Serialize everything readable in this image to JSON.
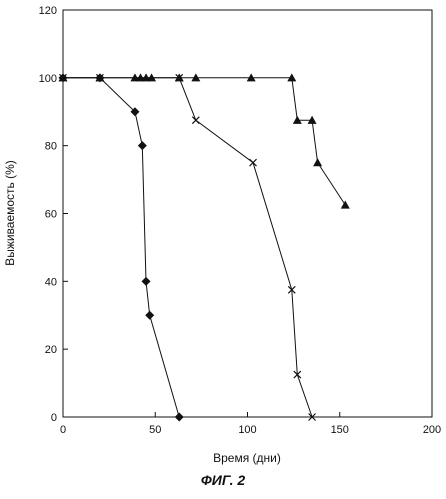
{
  "figure_caption": "ФИГ. 2",
  "chart_data": {
    "type": "line",
    "title": "",
    "xlabel": "Время (дни)",
    "ylabel": "Выживаемость (%)",
    "xlim": [
      0,
      200
    ],
    "ylim": [
      0,
      120
    ],
    "xticks": [
      0,
      50,
      100,
      150,
      200
    ],
    "yticks": [
      0,
      20,
      40,
      60,
      80,
      100,
      120
    ],
    "grid": false,
    "legend": "none",
    "series": [
      {
        "marker": "diamond",
        "x": [
          0,
          20,
          39,
          43,
          45,
          47,
          63
        ],
        "y": [
          100,
          100,
          90,
          80,
          40,
          30,
          0
        ]
      },
      {
        "marker": "cross",
        "x": [
          0,
          20,
          63,
          72,
          103,
          124,
          127,
          135
        ],
        "y": [
          100,
          100,
          100,
          87.5,
          75,
          37.5,
          12.5,
          0
        ]
      },
      {
        "marker": "triangle",
        "x": [
          0,
          20,
          39,
          42,
          45,
          48,
          63,
          72,
          102,
          124,
          127,
          135,
          138,
          153
        ],
        "y": [
          100,
          100,
          100,
          100,
          100,
          100,
          100,
          100,
          100,
          100,
          87.5,
          87.5,
          75,
          62.5
        ]
      }
    ]
  }
}
